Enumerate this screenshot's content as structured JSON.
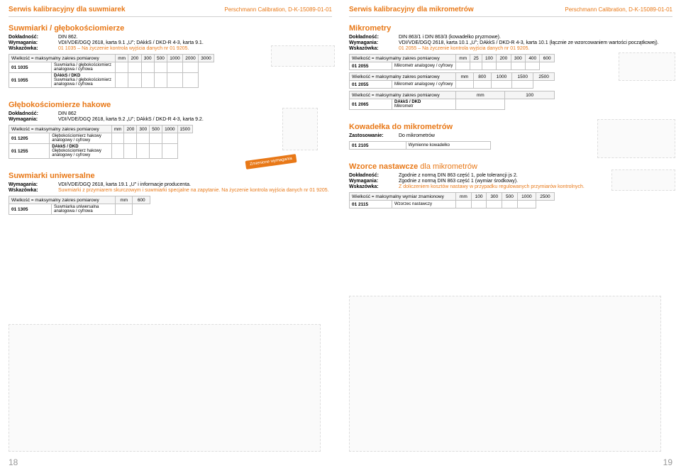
{
  "left": {
    "header_title": "Serwis kalibracyjny dla suwmiarek",
    "header_right": "Perschmann Calibration, D-K-15089-01-01",
    "s1": {
      "title": "Suwmiarki / głębokościomierze",
      "specs": [
        {
          "l": "Dokładność:",
          "v": "DIN 862."
        },
        {
          "l": "Wymagania:",
          "v": "VDI/VDE/DGQ 2618, karta 9.1 „U\"; DAkkS / DKD-R 4-3, karta 9.1."
        },
        {
          "l": "Wskazówka:",
          "v": "01 1035 – Na życzenie kontrola wyjścia danych nr 01 9205."
        }
      ],
      "thead": [
        "Wielkość = maksymalny zakres pomiarowy",
        "mm",
        "200",
        "300",
        "500",
        "1000",
        "2000",
        "3000"
      ],
      "rows": [
        {
          "code": "01 1035",
          "desc": "Suwmiarka / głębokościomierz analogowa / cyfrowa"
        },
        {
          "code": "01 1055",
          "desc": "DAkkS / DKD\nSuwmiarka / głębokościomierz analogowa / cyfrowa"
        }
      ]
    },
    "s2": {
      "title": "Głębokościomierze hakowe",
      "specs": [
        {
          "l": "Dokładność:",
          "v": "DIN 862"
        },
        {
          "l": "Wymagania:",
          "v": "VDI/VDE/DGQ 2618, karta 9.2 „U\"; DAkkS / DKD-R 4-3, karta 9.2."
        }
      ],
      "thead": [
        "Wielkość = maksymalny zakres pomiarowy",
        "mm",
        "200",
        "300",
        "500",
        "1000",
        "1500"
      ],
      "rows": [
        {
          "code": "01 1205",
          "desc": "Głębokościomierz hakowy analogowy / cyfrowy"
        },
        {
          "code": "01 1255",
          "desc": "DAkkS / DKD\nGłębokościomierz hakowy analogowy / cyfrowy"
        }
      ]
    },
    "s3": {
      "title": "Suwmiarki uniwersalne",
      "specs": [
        {
          "l": "Wymagania:",
          "v": "VDI/VDE/DGQ 2618, karta 19.1 „U\" i informacje producenta."
        },
        {
          "l": "Wskazówka:",
          "v": "Suwmiarki z przymiarem skurczowym i suwmiarki specjalne na zapytanie.\nNa życzenie kontrola wyjścia danych nr 01 9205."
        }
      ],
      "thead": [
        "Wielkość = maksymalny zakres pomiarowy",
        "mm",
        "600"
      ],
      "rows": [
        {
          "code": "01 1305",
          "desc": "Suwmiarka uniwersalna analogowa / cyfrowa"
        }
      ],
      "badge": "Zmienione\nwymagania"
    },
    "pagenum": "18"
  },
  "right": {
    "header_title": "Serwis kalibracyjny dla mikrometrów",
    "header_right": "Perschmann Calibration, D-K-15089-01-01",
    "s1": {
      "title": "Mikrometry",
      "specs": [
        {
          "l": "Dokładność:",
          "v": "DIN 863/1 i DIN 863/3 (kowadelko pryzmowe)."
        },
        {
          "l": "Wymagania:",
          "v": "VDI/VDE/DGQ 2618, karta 10.1 „U\"; DAkkS / DKD-R 4-3, karta 10.1 (łącznie ze wzorcowaniem wartości początkowej)."
        },
        {
          "l": "Wskazówka:",
          "v": "01 2055 – Na życzenie kontrola wyjścia danych nr 01 9205."
        }
      ],
      "thead1": [
        "Wielkość = maksymalny zakres pomiarowy",
        "mm",
        "25",
        "100",
        "200",
        "300",
        "400",
        "600"
      ],
      "row1": {
        "code": "01 2055",
        "desc": "Mikrometr analogowy / cyfrowy"
      },
      "thead2": [
        "Wielkość = maksymalny zakres pomiarowy",
        "mm",
        "800",
        "1000",
        "1500",
        "2500"
      ],
      "row2": {
        "code": "01 2055",
        "desc": "Mikrometr analogowy / cyfrowy"
      },
      "thead3": [
        "Wielkość = maksymalny zakres pomiarowy",
        "mm",
        "100"
      ],
      "row3": {
        "code": "01 2065",
        "desc": "DAkkS / DKD\nMikrometr"
      }
    },
    "s2": {
      "title": "Kowadełka do mikrometrów",
      "specs": [
        {
          "l": "Zastosowanie:",
          "v": "Do mikrometrów"
        }
      ],
      "row": {
        "code": "01 2105",
        "desc": "Wymienne kowadełko"
      }
    },
    "s3": {
      "title_a": "Wzorce nastawcze ",
      "title_b": "dla mikrometrów",
      "specs": [
        {
          "l": "Dokładność:",
          "v": "Zgodnie z normą DIN 863 część 1, pole tolerancji js 2."
        },
        {
          "l": "Wymagania:",
          "v": "Zgodnie z normą DIN 863 część 1 (wymiar środkowy)."
        },
        {
          "l": "Wskazówka:",
          "v": "Z doliczeniem kosztów nastawy w przypadku regulowanych przymiarów kontrolnych."
        }
      ],
      "thead": [
        "Wielkość = maksymalny wymiar znamionowy",
        "mm",
        "100",
        "300",
        "500",
        "1000",
        "2500"
      ],
      "row": {
        "code": "01 2115",
        "desc": "Wzorzec nastawczy"
      }
    },
    "pagenum": "19"
  }
}
